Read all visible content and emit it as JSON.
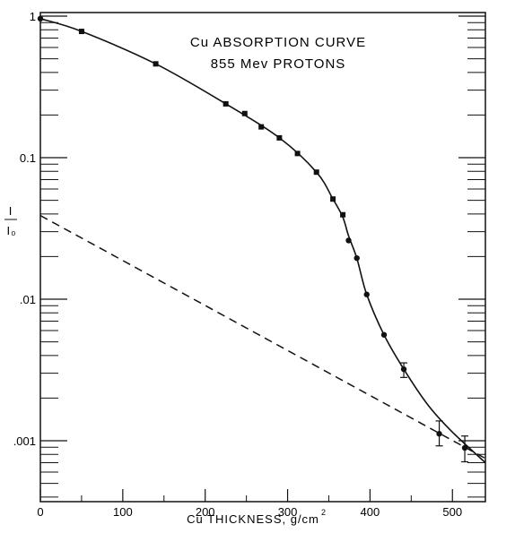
{
  "chart_data": {
    "type": "scatter",
    "title": "Cu ABSORPTION CURVE",
    "subtitle": "855 Mev PROTONS",
    "xlabel": "Cu THICKNESS, g/cm",
    "xlabel_sup": "2",
    "ylabel_num": "I",
    "ylabel_den": "I₀",
    "x_scale": "linear",
    "y_scale": "log",
    "xlim": [
      0,
      540
    ],
    "ylim": [
      0.0004,
      1
    ],
    "x_ticks": [
      0,
      100,
      200,
      300,
      400,
      500
    ],
    "x_tick_labels": [
      "0",
      "100",
      "200",
      "300",
      "400",
      "500"
    ],
    "y_ticks": [
      1,
      0.1,
      0.01,
      0.001
    ],
    "y_tick_labels": [
      "1",
      "0.1",
      ".01",
      ".001"
    ],
    "grid": false,
    "series": [
      {
        "style": "square-markers",
        "x": [
          0,
          50,
          140,
          225,
          248,
          268,
          290,
          312,
          335,
          355,
          367
        ],
        "y": [
          0.96,
          0.78,
          0.46,
          0.24,
          0.205,
          0.165,
          0.138,
          0.107,
          0.079,
          0.051,
          0.0395
        ]
      },
      {
        "style": "circle-markers-with-error-bars",
        "x": [
          374,
          384,
          396,
          417,
          441,
          484,
          515
        ],
        "y": [
          0.026,
          0.0195,
          0.0108,
          0.0056,
          0.0032,
          0.00112,
          0.00089
        ],
        "err_low": [
          0,
          0,
          0,
          0,
          0.0028,
          0.00092,
          0.00071
        ],
        "err_high": [
          0,
          0,
          0,
          0,
          0.00355,
          0.00138,
          0.00108
        ]
      },
      {
        "style": "solid-curve",
        "x": [
          0,
          50,
          140,
          225,
          290,
          335,
          355,
          367,
          374,
          384,
          396,
          417,
          441,
          470,
          500,
          540
        ],
        "y": [
          0.96,
          0.78,
          0.46,
          0.24,
          0.138,
          0.079,
          0.051,
          0.038,
          0.028,
          0.0195,
          0.0108,
          0.0056,
          0.0032,
          0.0018,
          0.00115,
          0.0007
        ]
      },
      {
        "style": "dashed-line",
        "x": [
          0,
          540
        ],
        "y": [
          0.039,
          0.00075
        ]
      }
    ]
  }
}
